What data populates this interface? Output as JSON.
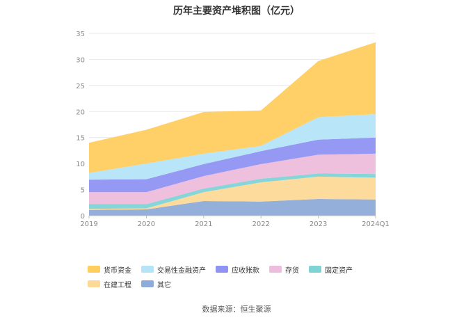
{
  "chart_data": {
    "type": "area",
    "stacked": true,
    "title": "历年主要资产堆积图（亿元）",
    "categories": [
      "2019",
      "2020",
      "2021",
      "2022",
      "2023",
      "2024Q1"
    ],
    "ylim": [
      0,
      35
    ],
    "yticks": [
      "0",
      "5",
      "10",
      "15",
      "20",
      "25",
      "30",
      "35"
    ],
    "grid": true,
    "legend_position": "bottom",
    "series": [
      {
        "name": "其它",
        "color": "#8fabd9",
        "values": [
          1.1,
          1.2,
          2.8,
          2.7,
          3.2,
          3.1
        ]
      },
      {
        "name": "在建工程",
        "color": "#fdd998",
        "values": [
          0.2,
          0.2,
          1.7,
          3.7,
          4.3,
          4.2
        ]
      },
      {
        "name": "固定资产",
        "color": "#7fd3d6",
        "values": [
          0.9,
          0.8,
          0.7,
          0.7,
          0.6,
          0.7
        ]
      },
      {
        "name": "存货",
        "color": "#eebcdc",
        "values": [
          2.3,
          2.3,
          2.4,
          2.8,
          3.6,
          3.9
        ]
      },
      {
        "name": "应收账款",
        "color": "#8f94f2",
        "values": [
          2.4,
          2.5,
          2.3,
          2.5,
          2.9,
          3.1
        ]
      },
      {
        "name": "交易性金融资产",
        "color": "#b5e4f8",
        "values": [
          1.3,
          3.0,
          2.0,
          1.0,
          4.3,
          4.5
        ]
      },
      {
        "name": "货币资金",
        "color": "#fece5f",
        "values": [
          5.8,
          6.5,
          8.0,
          6.8,
          10.8,
          13.8
        ]
      }
    ],
    "legend_order": [
      "货币资金",
      "交易性金融资产",
      "应收账款",
      "存货",
      "固定资产",
      "在建工程",
      "其它"
    ]
  },
  "source_text": "数据来源：恒生聚源"
}
